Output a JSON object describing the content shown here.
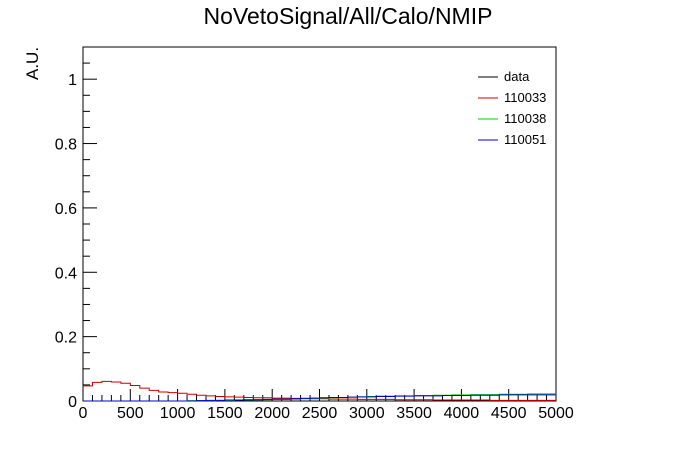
{
  "chart_data": {
    "type": "histogram",
    "title": "NoVetoSignal/All/Calo/NMIP",
    "xlabel": "",
    "ylabel": "A.U.",
    "xlim": [
      0,
      5000
    ],
    "ylim": [
      0,
      1.1
    ],
    "x_ticks": [
      0,
      500,
      1000,
      1500,
      2000,
      2500,
      3000,
      3500,
      4000,
      4500,
      5000
    ],
    "y_ticks": [
      0,
      0.2,
      0.4,
      0.6,
      0.8,
      1
    ],
    "x_tick_labels": [
      "0",
      "500",
      "1000",
      "1500",
      "2000",
      "2500",
      "3000",
      "3500",
      "4000",
      "4500",
      "5000"
    ],
    "y_tick_labels": [
      "0",
      "0.2",
      "0.4",
      "0.6",
      "0.8",
      "1"
    ],
    "grid": false,
    "legend_position": "top-right",
    "bin_width": 100,
    "series": [
      {
        "name": "data",
        "color": "#000000",
        "values": []
      },
      {
        "name": "110033",
        "color": "#cc0000",
        "values": [
          0.047,
          0.058,
          0.061,
          0.059,
          0.055,
          0.048,
          0.04,
          0.033,
          0.028,
          0.026,
          0.024,
          0.021,
          0.018,
          0.016,
          0.014,
          0.013,
          0.012,
          0.011,
          0.01,
          0.01,
          0.009,
          0.009,
          0.008,
          0.008,
          0.007,
          0.007,
          0.006,
          0.006,
          0.006,
          0.005,
          0.005,
          0.005,
          0.005,
          0.004,
          0.004,
          0.004,
          0.004,
          0.003,
          0.003,
          0.003,
          0.003,
          0.003,
          0.003,
          0.002,
          0.002,
          0.002,
          0.002,
          0.002,
          0.002,
          0.002
        ]
      },
      {
        "name": "110038",
        "color": "#00cc00",
        "values": [
          0.0,
          0.0,
          0.0,
          0.0,
          0.0,
          0.0,
          0.0,
          0.0,
          0.0,
          0.0,
          0.0,
          0.001,
          0.001,
          0.001,
          0.002,
          0.002,
          0.003,
          0.003,
          0.004,
          0.004,
          0.005,
          0.005,
          0.006,
          0.007,
          0.008,
          0.009,
          0.01,
          0.011,
          0.012,
          0.013,
          0.014,
          0.015,
          0.015,
          0.016,
          0.016,
          0.017,
          0.017,
          0.018,
          0.018,
          0.019,
          0.019,
          0.02,
          0.02,
          0.02,
          0.021,
          0.021,
          0.021,
          0.022,
          0.022,
          0.022
        ]
      },
      {
        "name": "110051",
        "color": "#0000cc",
        "values": [
          0.0,
          0.0,
          0.0,
          0.0,
          0.0,
          0.0,
          0.0,
          0.0,
          0.0,
          0.0,
          0.0,
          0.0,
          0.001,
          0.002,
          0.002,
          0.003,
          0.003,
          0.004,
          0.004,
          0.005,
          0.006,
          0.006,
          0.007,
          0.008,
          0.009,
          0.01,
          0.011,
          0.011,
          0.012,
          0.013,
          0.013,
          0.014,
          0.014,
          0.015,
          0.015,
          0.016,
          0.016,
          0.016,
          0.017,
          0.017,
          0.017,
          0.018,
          0.018,
          0.018,
          0.019,
          0.019,
          0.019,
          0.019,
          0.019,
          0.019
        ]
      }
    ]
  }
}
